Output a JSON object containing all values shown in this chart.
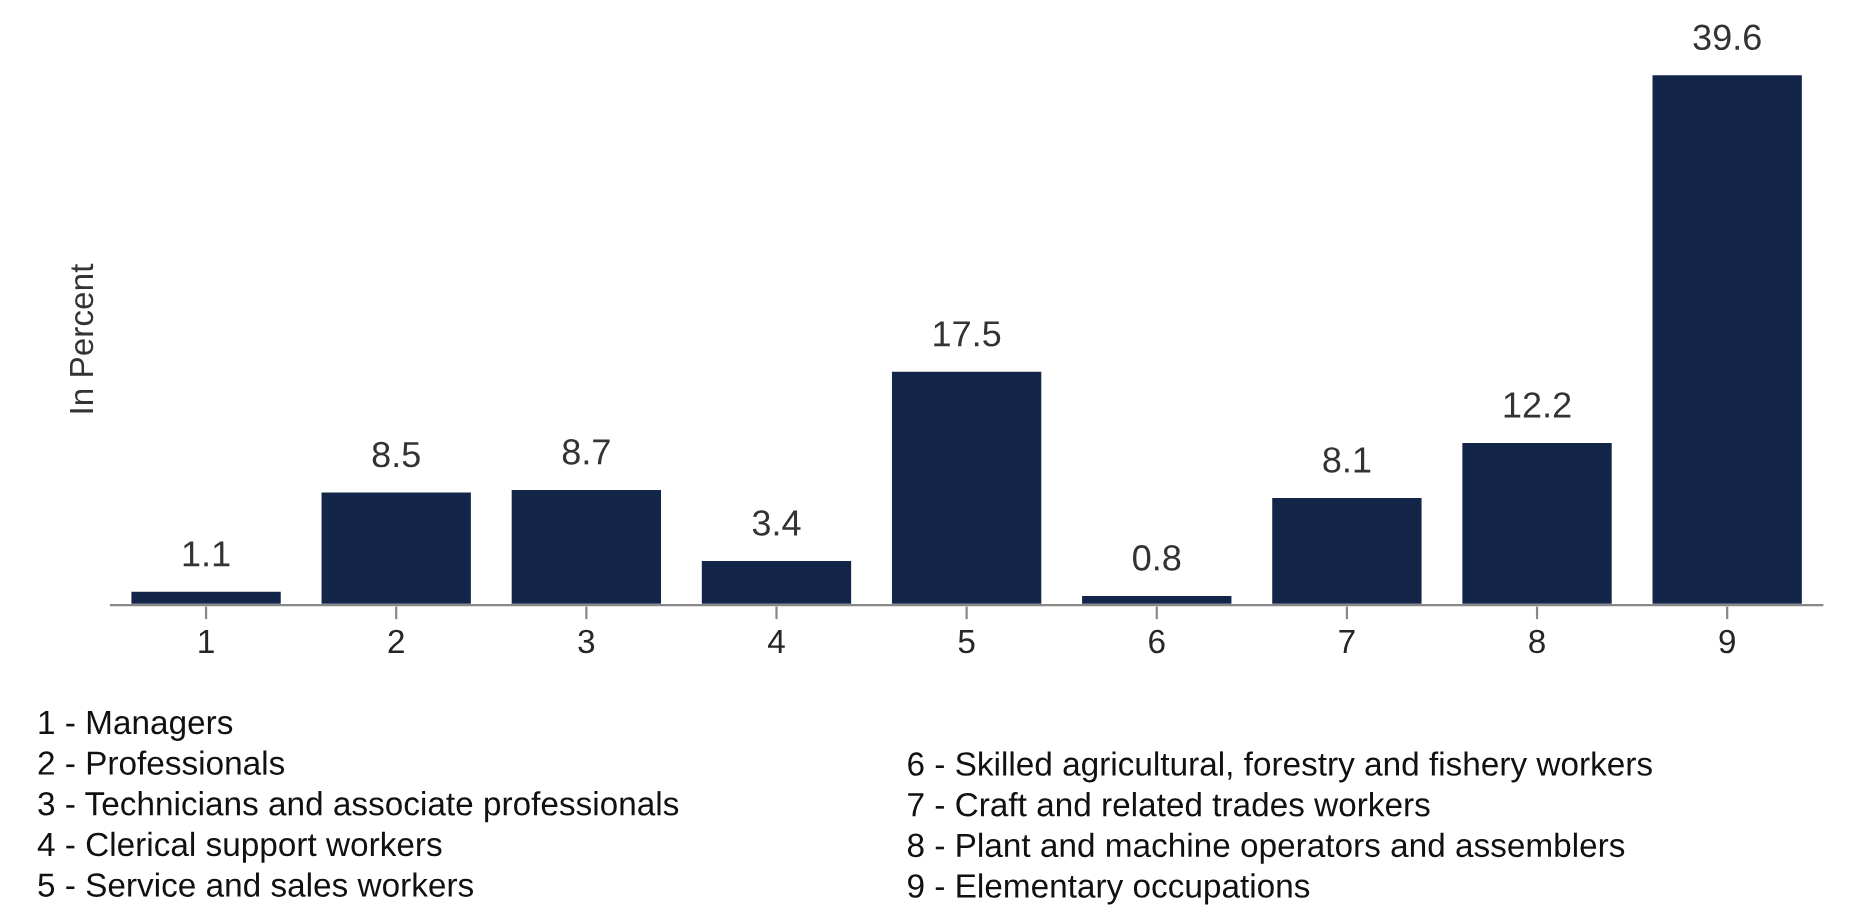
{
  "chart_data": {
    "type": "bar",
    "ylabel": "In Percent",
    "categories": [
      "1",
      "2",
      "3",
      "4",
      "5",
      "6",
      "7",
      "8",
      "9"
    ],
    "values": [
      1.1,
      8.5,
      8.7,
      3.4,
      17.5,
      0.8,
      8.1,
      12.2,
      39.6
    ],
    "color": "#14254a",
    "data_labels": true,
    "grid": false,
    "tick_labels": "x",
    "annotations": [
      "1 - Managers",
      "2 - Professionals",
      "3 - Technicians and associate professionals",
      "4 - Clerical support workers",
      "5 - Service and sales workers",
      "6 - Skilled agricultural, forestry and fishery workers",
      "7 - Craft and related trades workers",
      "8 - Plant and machine operators and assemblers",
      "9 - Elementary occupations"
    ]
  }
}
